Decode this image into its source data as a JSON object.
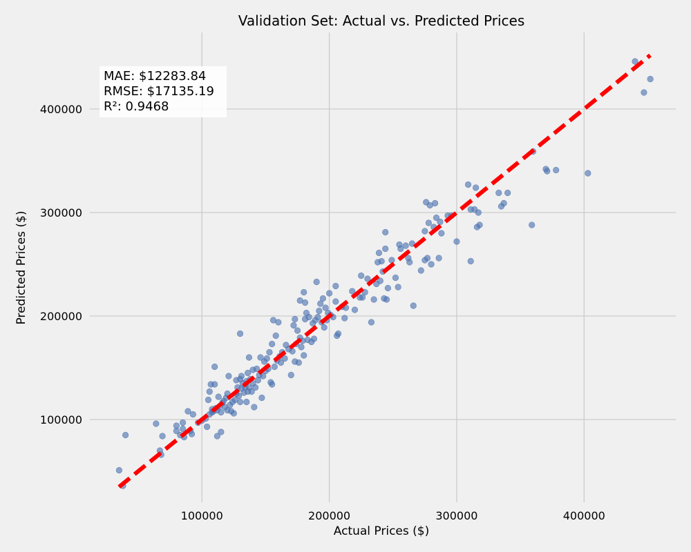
{
  "chart_data": {
    "type": "scatter",
    "title": "Validation Set: Actual vs. Predicted Prices",
    "xlabel": "Actual Prices ($)",
    "ylabel": "Predicted Prices ($)",
    "xlim": [
      12000,
      472000
    ],
    "ylim": [
      20000,
      474000
    ],
    "xticks": [
      100000,
      200000,
      300000,
      400000
    ],
    "yticks": [
      100000,
      200000,
      300000,
      400000
    ],
    "grid": true,
    "stats": {
      "mae": "MAE: $12283.84",
      "rmse": "RMSE: $17135.19",
      "r2": "R²: 0.9468"
    },
    "reference_line": {
      "x": [
        34900,
        451950
      ],
      "y": [
        34900,
        451950
      ],
      "color": "#ff0000",
      "style": "dashed"
    },
    "colors": {
      "points": "#4c72b0",
      "reference": "#ff0000",
      "background": "#f0f0f0",
      "grid": "#cbcbcb"
    },
    "points": [
      [
        35000,
        51000
      ],
      [
        38000,
        36000
      ],
      [
        40000,
        85000
      ],
      [
        64000,
        96000
      ],
      [
        67000,
        70000
      ],
      [
        68000,
        66000
      ],
      [
        69000,
        84000
      ],
      [
        80000,
        94000
      ],
      [
        80000,
        89000
      ],
      [
        83000,
        85000
      ],
      [
        85000,
        91000
      ],
      [
        85000,
        97000
      ],
      [
        86000,
        83000
      ],
      [
        89000,
        108000
      ],
      [
        91000,
        89000
      ],
      [
        92000,
        86000
      ],
      [
        93000,
        105000
      ],
      [
        97000,
        97000
      ],
      [
        100000,
        99000
      ],
      [
        103000,
        101000
      ],
      [
        104000,
        93000
      ],
      [
        105000,
        119000
      ],
      [
        106000,
        105000
      ],
      [
        106000,
        127000
      ],
      [
        107000,
        134000
      ],
      [
        108000,
        107000
      ],
      [
        108000,
        110000
      ],
      [
        109000,
        108000
      ],
      [
        110000,
        134000
      ],
      [
        110000,
        151000
      ],
      [
        111000,
        111000
      ],
      [
        112000,
        84000
      ],
      [
        112000,
        109000
      ],
      [
        113000,
        122000
      ],
      [
        114000,
        113000
      ],
      [
        115000,
        88000
      ],
      [
        115000,
        107000
      ],
      [
        116000,
        116000
      ],
      [
        117000,
        118000
      ],
      [
        118000,
        112000
      ],
      [
        119000,
        121000
      ],
      [
        120000,
        125000
      ],
      [
        120000,
        109000
      ],
      [
        121000,
        142000
      ],
      [
        122000,
        114000
      ],
      [
        123000,
        108000
      ],
      [
        124000,
        117000
      ],
      [
        125000,
        106000
      ],
      [
        126000,
        119000
      ],
      [
        127000,
        138000
      ],
      [
        127000,
        125000
      ],
      [
        128000,
        131000
      ],
      [
        129000,
        123000
      ],
      [
        130000,
        117000
      ],
      [
        130000,
        139000
      ],
      [
        130000,
        183000
      ],
      [
        131000,
        130000
      ],
      [
        131000,
        142000
      ],
      [
        132000,
        135000
      ],
      [
        133000,
        126000
      ],
      [
        134000,
        131000
      ],
      [
        135000,
        117000
      ],
      [
        135000,
        137000
      ],
      [
        136000,
        127000
      ],
      [
        136000,
        145000
      ],
      [
        137000,
        160000
      ],
      [
        137000,
        131000
      ],
      [
        138000,
        139000
      ],
      [
        139000,
        127000
      ],
      [
        140000,
        148000
      ],
      [
        140000,
        135000
      ],
      [
        141000,
        112000
      ],
      [
        142000,
        131000
      ],
      [
        143000,
        149000
      ],
      [
        144000,
        138000
      ],
      [
        145000,
        143000
      ],
      [
        146000,
        160000
      ],
      [
        147000,
        121000
      ],
      [
        148000,
        142000
      ],
      [
        149000,
        156000
      ],
      [
        150000,
        147000
      ],
      [
        151000,
        159000
      ],
      [
        152000,
        149000
      ],
      [
        153000,
        165000
      ],
      [
        154000,
        136000
      ],
      [
        155000,
        173000
      ],
      [
        155000,
        134000
      ],
      [
        156000,
        196000
      ],
      [
        157000,
        151000
      ],
      [
        158000,
        181000
      ],
      [
        159000,
        157000
      ],
      [
        160000,
        194000
      ],
      [
        161000,
        161000
      ],
      [
        162000,
        155000
      ],
      [
        163000,
        165000
      ],
      [
        165000,
        159000
      ],
      [
        166000,
        172000
      ],
      [
        168000,
        168000
      ],
      [
        170000,
        143000
      ],
      [
        171000,
        166000
      ],
      [
        172000,
        191000
      ],
      [
        173000,
        197000
      ],
      [
        173000,
        156000
      ],
      [
        174000,
        173000
      ],
      [
        175000,
        186000
      ],
      [
        176000,
        155000
      ],
      [
        177000,
        215000
      ],
      [
        177000,
        179000
      ],
      [
        178000,
        170000
      ],
      [
        179000,
        176000
      ],
      [
        180000,
        223000
      ],
      [
        180000,
        162000
      ],
      [
        181000,
        213000
      ],
      [
        181000,
        197000
      ],
      [
        182000,
        203000
      ],
      [
        183000,
        177000
      ],
      [
        184000,
        199000
      ],
      [
        186000,
        175000
      ],
      [
        187000,
        193000
      ],
      [
        188000,
        178000
      ],
      [
        189000,
        196000
      ],
      [
        190000,
        233000
      ],
      [
        191000,
        199000
      ],
      [
        192000,
        205000
      ],
      [
        193000,
        212000
      ],
      [
        194000,
        194000
      ],
      [
        195000,
        217000
      ],
      [
        196000,
        189000
      ],
      [
        197000,
        208000
      ],
      [
        198000,
        196000
      ],
      [
        199000,
        203000
      ],
      [
        200000,
        222000
      ],
      [
        201000,
        201000
      ],
      [
        203000,
        199000
      ],
      [
        205000,
        229000
      ],
      [
        205000,
        214000
      ],
      [
        206000,
        181000
      ],
      [
        207000,
        183000
      ],
      [
        210000,
        209000
      ],
      [
        212000,
        198000
      ],
      [
        213000,
        208000
      ],
      [
        218000,
        224000
      ],
      [
        220000,
        206000
      ],
      [
        224000,
        218000
      ],
      [
        225000,
        239000
      ],
      [
        226000,
        218000
      ],
      [
        228000,
        223000
      ],
      [
        230000,
        236000
      ],
      [
        233000,
        194000
      ],
      [
        235000,
        216000
      ],
      [
        237000,
        231000
      ],
      [
        238000,
        252000
      ],
      [
        239000,
        261000
      ],
      [
        240000,
        234000
      ],
      [
        241000,
        253000
      ],
      [
        242000,
        243000
      ],
      [
        243000,
        217000
      ],
      [
        244000,
        265000
      ],
      [
        244000,
        281000
      ],
      [
        245000,
        216000
      ],
      [
        246000,
        227000
      ],
      [
        249000,
        254000
      ],
      [
        252000,
        237000
      ],
      [
        254000,
        228000
      ],
      [
        255000,
        269000
      ],
      [
        256000,
        265000
      ],
      [
        260000,
        268000
      ],
      [
        262000,
        256000
      ],
      [
        263000,
        252000
      ],
      [
        265000,
        270000
      ],
      [
        266000,
        210000
      ],
      [
        272000,
        244000
      ],
      [
        275000,
        282000
      ],
      [
        275000,
        254000
      ],
      [
        276000,
        310000
      ],
      [
        277000,
        256000
      ],
      [
        278000,
        290000
      ],
      [
        279000,
        307000
      ],
      [
        280000,
        250000
      ],
      [
        282000,
        286000
      ],
      [
        283000,
        309000
      ],
      [
        284000,
        295000
      ],
      [
        286000,
        256000
      ],
      [
        287000,
        291000
      ],
      [
        288000,
        280000
      ],
      [
        293000,
        297000
      ],
      [
        296000,
        297000
      ],
      [
        300000,
        272000
      ],
      [
        309000,
        327000
      ],
      [
        311000,
        253000
      ],
      [
        311000,
        303000
      ],
      [
        314000,
        303000
      ],
      [
        315000,
        324000
      ],
      [
        316000,
        286000
      ],
      [
        317000,
        300000
      ],
      [
        318000,
        288000
      ],
      [
        333000,
        319000
      ],
      [
        335000,
        306000
      ],
      [
        337000,
        309000
      ],
      [
        340000,
        319000
      ],
      [
        359000,
        288000
      ],
      [
        360000,
        359000
      ],
      [
        370000,
        342000
      ],
      [
        371000,
        340000
      ],
      [
        378000,
        341000
      ],
      [
        403000,
        338000
      ],
      [
        440000,
        446000
      ],
      [
        447000,
        416000
      ],
      [
        452000,
        429000
      ]
    ]
  }
}
